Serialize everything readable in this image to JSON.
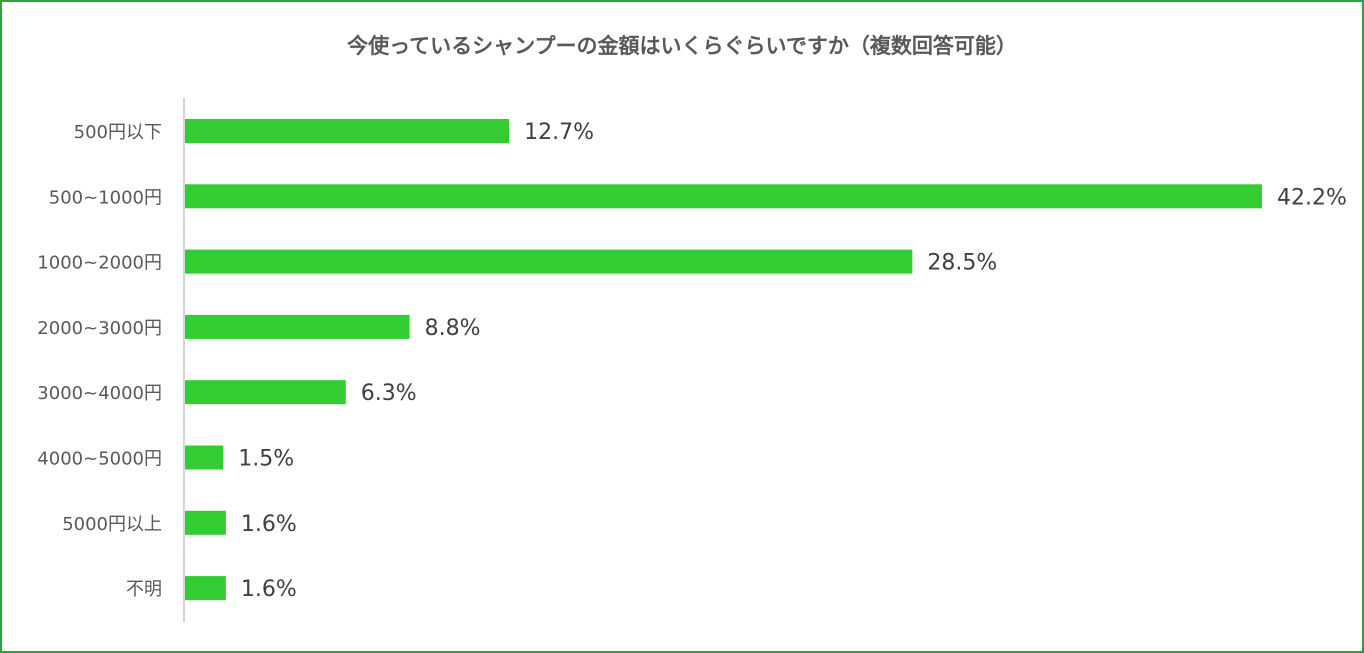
{
  "chart_data": {
    "type": "bar",
    "orientation": "horizontal",
    "title": "今使っているシャンプーの金額はいくらぐらいですか（複数回答可能）",
    "categories": [
      "500円以下",
      "500~1000円",
      "1000~2000円",
      "2000~3000円",
      "3000~4000円",
      "4000~5000円",
      "5000円以上",
      "不明"
    ],
    "values": [
      12.7,
      42.2,
      28.5,
      8.8,
      6.3,
      1.5,
      1.6,
      1.6
    ],
    "value_labels": [
      "12.7%",
      "42.2%",
      "28.5%",
      "8.8%",
      "6.3%",
      "1.5%",
      "1.6%",
      "1.6%"
    ],
    "xlim": [
      0,
      42.2
    ],
    "grid": false,
    "legend": "none",
    "colors": {
      "bar": "#33cc33",
      "border": "#22a83a",
      "axis": "#c8c8c8",
      "text": "#595959"
    }
  }
}
